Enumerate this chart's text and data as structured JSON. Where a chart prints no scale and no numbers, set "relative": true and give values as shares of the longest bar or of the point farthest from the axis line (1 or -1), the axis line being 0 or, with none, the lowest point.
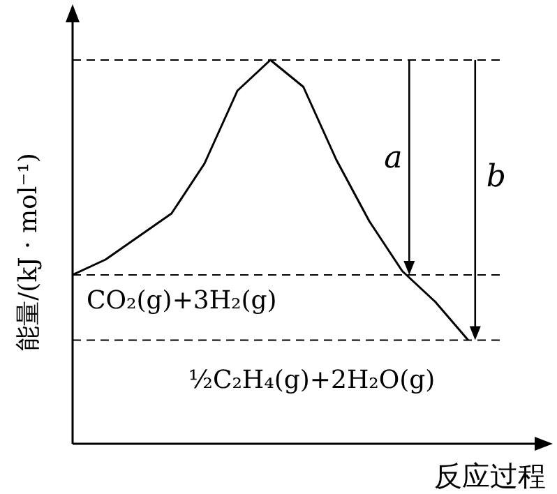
{
  "chart_data": {
    "type": "line",
    "relative": true,
    "xlabel": "反应过程",
    "ylabel": "能量/(kJ · mol⁻¹)",
    "categories": [
      null,
      null,
      null,
      null,
      null,
      null,
      null,
      null,
      null,
      null,
      null,
      null,
      null
    ],
    "series": [
      {
        "color": "#000000",
        "values": [
          0.44,
          0.48,
          0.54,
          0.6,
          0.73,
          0.92,
          1.0,
          0.93,
          0.74,
          0.58,
          0.45,
          0.37,
          0.27
        ]
      }
    ],
    "ref_lines": [
      {
        "axis": "y",
        "value": 1.0,
        "color": "#000000",
        "line_style": "dashed"
      },
      {
        "axis": "y",
        "value": 0.44,
        "color": "#000000",
        "line_style": "dashed"
      },
      {
        "axis": "y",
        "value": 0.27,
        "color": "#000000",
        "line_style": "dashed"
      }
    ],
    "annotations": [
      "a",
      "b",
      "CO₂(g)+3H₂(g)",
      "½C₂H₄(g)+2H₂O(g)"
    ],
    "tick_labels": false,
    "grid": false,
    "legend": false,
    "marker": "none",
    "line_style": "solid"
  }
}
